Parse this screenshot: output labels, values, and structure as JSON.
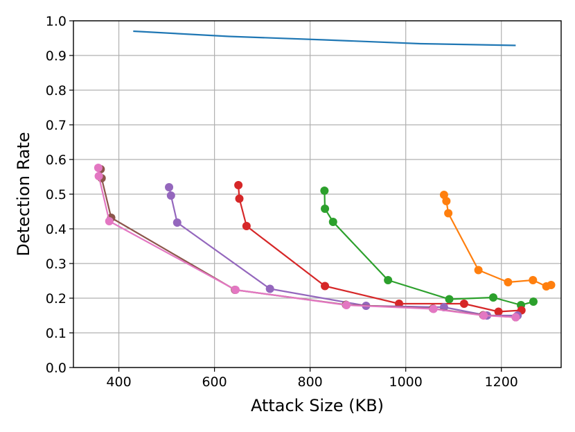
{
  "chart_data": {
    "type": "line",
    "title": "",
    "xlabel": "Attack Size (KB)",
    "ylabel": "Detection Rate",
    "xlim": [
      305,
      1325
    ],
    "ylim": [
      0.0,
      1.0
    ],
    "x_ticks": [
      400,
      600,
      800,
      1000,
      1200
    ],
    "x_tick_labels": [
      "400",
      "600",
      "800",
      "1000",
      "1200"
    ],
    "y_ticks": [
      0.0,
      0.1,
      0.2,
      0.3,
      0.4,
      0.5,
      0.6,
      0.7,
      0.8,
      0.9,
      1.0
    ],
    "y_tick_labels": [
      "0.0",
      "0.1",
      "0.2",
      "0.3",
      "0.4",
      "0.5",
      "0.6",
      "0.7",
      "0.8",
      "0.9",
      "1.0"
    ],
    "grid": true,
    "legend": "none",
    "series": [
      {
        "color": "#1f77b4",
        "markers": false,
        "points": [
          [
            430,
            0.97
          ],
          [
            630,
            0.955
          ],
          [
            830,
            0.945
          ],
          [
            1030,
            0.934
          ],
          [
            1230,
            0.929
          ]
        ]
      },
      {
        "color": "#ff7f0e",
        "markers": true,
        "points": [
          [
            1080,
            0.498
          ],
          [
            1085,
            0.48
          ],
          [
            1089,
            0.445
          ],
          [
            1152,
            0.281
          ],
          [
            1214,
            0.246
          ],
          [
            1266,
            0.252
          ],
          [
            1294,
            0.234
          ],
          [
            1304,
            0.238
          ]
        ]
      },
      {
        "color": "#2ca02c",
        "markers": true,
        "points": [
          [
            830,
            0.51
          ],
          [
            831,
            0.458
          ],
          [
            848,
            0.42
          ],
          [
            963,
            0.252
          ],
          [
            1091,
            0.197
          ],
          [
            1183,
            0.202
          ],
          [
            1241,
            0.18
          ],
          [
            1267,
            0.19
          ]
        ]
      },
      {
        "color": "#d62728",
        "markers": true,
        "points": [
          [
            650,
            0.526
          ],
          [
            652,
            0.487
          ],
          [
            667,
            0.408
          ],
          [
            831,
            0.235
          ],
          [
            986,
            0.184
          ],
          [
            1122,
            0.184
          ],
          [
            1194,
            0.161
          ],
          [
            1242,
            0.165
          ]
        ]
      },
      {
        "color": "#9467bd",
        "markers": true,
        "points": [
          [
            505,
            0.52
          ],
          [
            509,
            0.496
          ],
          [
            522,
            0.418
          ],
          [
            716,
            0.227
          ],
          [
            917,
            0.178
          ],
          [
            1080,
            0.174
          ],
          [
            1170,
            0.15
          ],
          [
            1234,
            0.15
          ]
        ]
      },
      {
        "color": "#8c564b",
        "markers": true,
        "points": [
          [
            362,
            0.572
          ],
          [
            364,
            0.546
          ],
          [
            384,
            0.432
          ],
          [
            643,
            0.224
          ],
          [
            875,
            0.181
          ],
          [
            1057,
            0.17
          ],
          [
            1162,
            0.151
          ],
          [
            1230,
            0.145
          ]
        ]
      },
      {
        "color": "#e377c2",
        "markers": true,
        "points": [
          [
            357,
            0.576
          ],
          [
            358,
            0.552
          ],
          [
            380,
            0.422
          ],
          [
            644,
            0.224
          ],
          [
            876,
            0.18
          ],
          [
            1058,
            0.169
          ],
          [
            1163,
            0.15
          ],
          [
            1230,
            0.145
          ]
        ]
      }
    ]
  }
}
